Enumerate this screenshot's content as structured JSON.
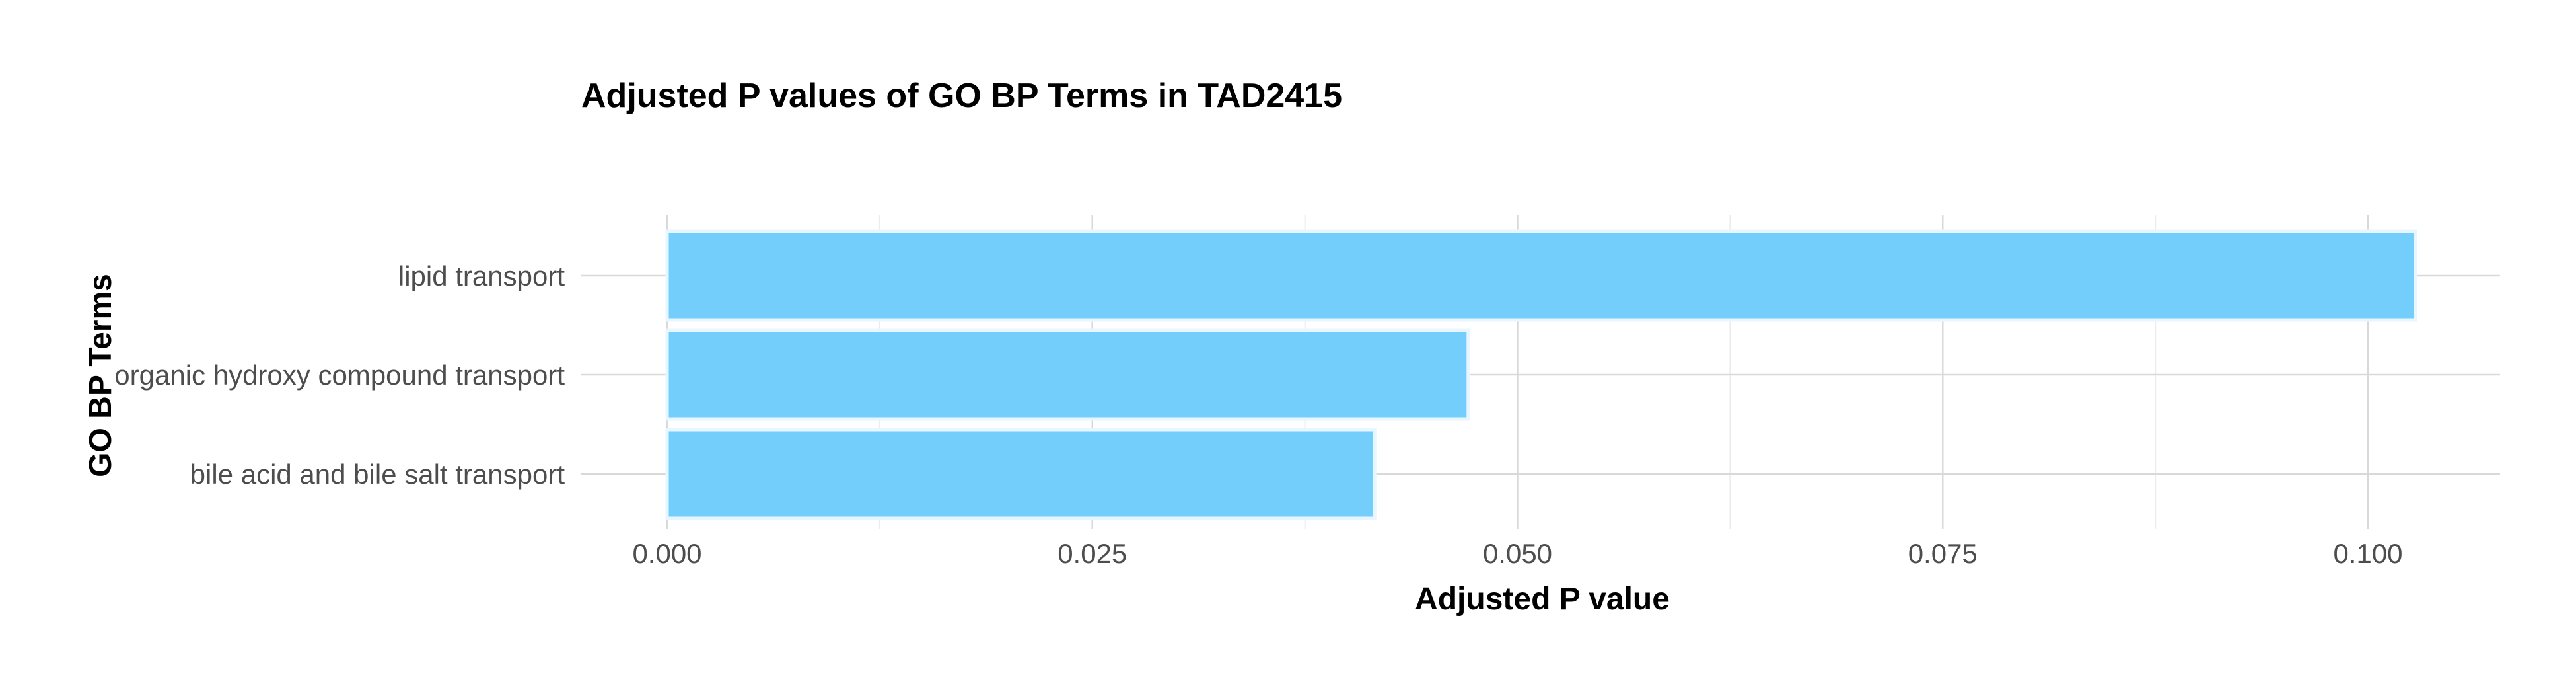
{
  "chart_data": {
    "type": "bar",
    "orientation": "horizontal",
    "title": "Adjusted P values of GO BP Terms in TAD2415",
    "xlabel": "Adjusted P value",
    "ylabel": "GO BP Terms",
    "categories": [
      "lipid transport",
      "organic hydroxy compound transport",
      "bile acid and bile salt transport"
    ],
    "values": [
      0.1028,
      0.0471,
      0.0416
    ],
    "xlim": [
      0,
      0.108
    ],
    "xticks": [
      0.0,
      0.025,
      0.05,
      0.075,
      0.1
    ],
    "xtick_labels": [
      "0.000",
      "0.025",
      "0.050",
      "0.075",
      "0.100"
    ],
    "bar_color": "#74CEFB",
    "grid": true,
    "legend": "none"
  }
}
